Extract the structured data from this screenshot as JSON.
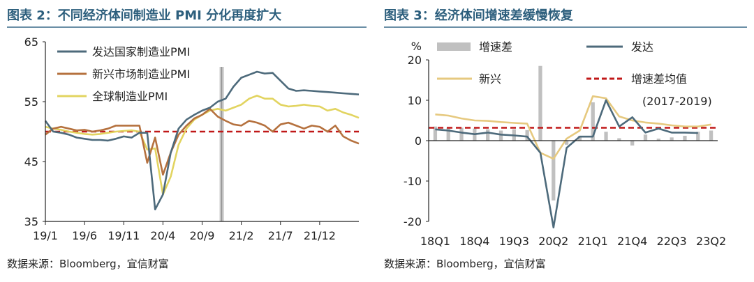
{
  "left": {
    "title": "图表 2：不同经济体间制造业 PMI 分化再度扩大",
    "source": "数据来源：Bloomberg，宜信财富"
  },
  "right": {
    "title": "图表 3：经济体间增速差缓慢恢复",
    "source": "数据来源：Bloomberg，宜信财富"
  },
  "colors": {
    "developed": "#4d6a7b",
    "emerging": "#b5713e",
    "global": "#e2d460",
    "xinxing": "#e6c97f",
    "gap_bar": "#c0c0c0",
    "average": "#c01818",
    "title": "#2d5f7d",
    "axis": "#222222"
  },
  "chart_data": [
    {
      "type": "line",
      "ylim": [
        35,
        65
      ],
      "yticks": [
        35,
        45,
        55,
        65
      ],
      "x_tick_labels": [
        "19/1",
        "19/6",
        "19/11",
        "20/4",
        "20/9",
        "21/2",
        "21/7",
        "21/12"
      ],
      "x_tick_index": [
        0,
        5,
        10,
        15,
        20,
        25,
        30,
        35
      ],
      "n_points": 41,
      "reference_line": 50,
      "marker_index": 22.5,
      "series": [
        {
          "name": "发达国家制造业PMI",
          "color_key": "developed",
          "values": [
            51.8,
            50.0,
            49.8,
            49.5,
            49.0,
            48.8,
            48.6,
            48.6,
            48.5,
            48.8,
            49.2,
            49.0,
            49.8,
            49.8,
            37.0,
            39.5,
            46.5,
            50.5,
            52.0,
            52.8,
            53.5,
            54.0,
            55.0,
            55.5,
            57.5,
            59.0,
            59.5,
            60.0,
            59.7,
            59.8,
            58.5,
            57.2,
            56.8,
            56.9,
            56.8,
            56.7,
            56.6,
            56.5,
            56.4,
            56.3,
            56.2
          ]
        },
        {
          "name": "新兴市场制造业PMI",
          "color_key": "emerging",
          "values": [
            49.5,
            50.5,
            50.8,
            50.5,
            50.2,
            50.3,
            50.0,
            50.2,
            50.5,
            51.0,
            51.0,
            51.0,
            51.0,
            44.8,
            49.0,
            42.8,
            46.5,
            49.5,
            51.0,
            52.2,
            52.8,
            53.8,
            52.5,
            51.8,
            51.2,
            51.0,
            51.8,
            51.5,
            51.0,
            50.0,
            51.2,
            51.5,
            51.0,
            50.5,
            51.0,
            50.8,
            50.0,
            51.0,
            49.2,
            48.5,
            48.0
          ]
        },
        {
          "name": "全球制造业PMI",
          "color_key": "global",
          "values": [
            50.8,
            50.5,
            50.3,
            50.0,
            49.8,
            49.6,
            49.5,
            49.6,
            49.8,
            50.0,
            50.1,
            50.2,
            50.0,
            47.0,
            47.2,
            39.5,
            42.5,
            47.8,
            50.5,
            52.0,
            52.8,
            53.5,
            53.8,
            53.5,
            54.0,
            54.5,
            55.5,
            56.0,
            55.5,
            55.5,
            54.5,
            54.2,
            54.3,
            54.5,
            54.3,
            54.2,
            53.5,
            53.8,
            53.2,
            52.8,
            52.3
          ]
        }
      ]
    },
    {
      "type": "bar+line",
      "ylabel": "%",
      "ylim": [
        -20,
        20
      ],
      "yticks": [
        -20,
        -10,
        0,
        10,
        20
      ],
      "categories": [
        "18Q1",
        "18Q2",
        "18Q3",
        "18Q4",
        "19Q1",
        "19Q2",
        "19Q3",
        "19Q4",
        "20Q1",
        "20Q2",
        "20Q3",
        "20Q4",
        "21Q1",
        "21Q2",
        "21Q3",
        "21Q4",
        "22Q1",
        "22Q2",
        "22Q3",
        "22Q4",
        "23Q1",
        "23Q2"
      ],
      "x_tick_labels": [
        "18Q1",
        "18Q4",
        "19Q3",
        "20Q2",
        "21Q1",
        "21Q4",
        "22Q3",
        "23Q2"
      ],
      "x_tick_index": [
        0,
        3,
        6,
        9,
        12,
        15,
        18,
        21
      ],
      "average_value": 3.2,
      "legend": {
        "gap": "增速差",
        "developed": "发达",
        "emerging": "新兴",
        "average": "增速差均值",
        "average_note": "(2017-2019)"
      },
      "bars": {
        "name": "增速差",
        "color_key": "gap_bar",
        "values": [
          3.5,
          3.2,
          3.2,
          3.0,
          2.8,
          2.5,
          2.8,
          2.6,
          18.5,
          -14.8,
          -1.0,
          1.2,
          9.5,
          2.2,
          0.6,
          -1.2,
          1.5,
          0.5,
          0.8,
          1.2,
          2.2,
          2.5
        ]
      },
      "series": [
        {
          "name": "发达",
          "color_key": "developed",
          "values": [
            2.8,
            2.5,
            2.0,
            1.6,
            2.0,
            1.5,
            1.3,
            1.0,
            -3.0,
            -21.5,
            -1.8,
            1.0,
            1.0,
            10.0,
            3.5,
            5.8,
            2.0,
            3.0,
            2.0,
            2.0,
            1.9,
            null
          ]
        },
        {
          "name": "新兴",
          "color_key": "xinxing",
          "values": [
            6.5,
            6.2,
            5.5,
            5.0,
            4.9,
            4.6,
            4.4,
            4.2,
            -3.0,
            -4.5,
            0.5,
            2.5,
            11.0,
            10.5,
            6.0,
            5.0,
            4.5,
            4.2,
            3.8,
            3.5,
            3.5,
            4.0
          ]
        }
      ]
    }
  ]
}
